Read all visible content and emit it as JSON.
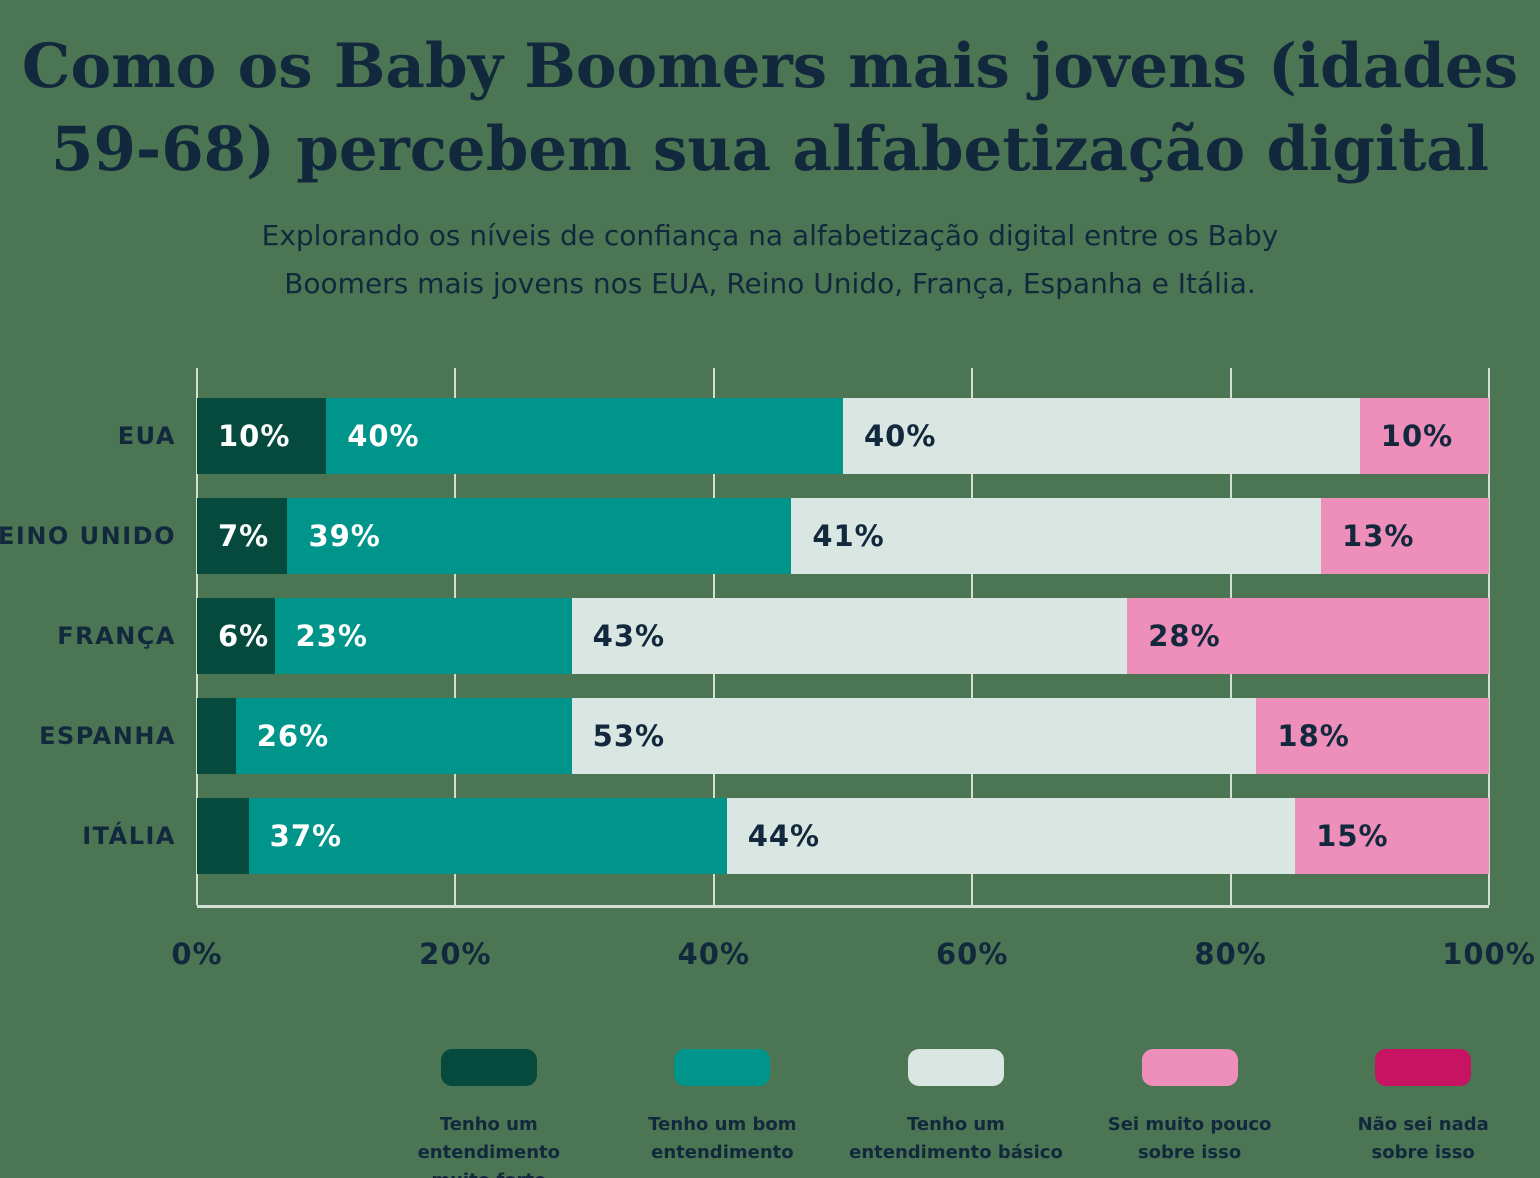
{
  "header": {
    "title": "Como os Baby Boomers mais jovens (idades\n59-68) percebem sua alfabetização digital",
    "subtitle": "Explorando os níveis de confiança na alfabetização digital entre os Baby\nBoomers mais jovens nos EUA, Reino Unido, França, Espanha e Itália."
  },
  "chart_data": {
    "type": "bar",
    "orientation": "horizontal",
    "stacked": true,
    "title": "Como os Baby Boomers mais jovens (idades 59-68) percebem sua alfabetização digital",
    "categories": [
      "EUA",
      "REINO UNIDO",
      "FRANÇA",
      "ESPANHA",
      "ITÁLIA"
    ],
    "series": [
      {
        "name": "Tenho um entendimento muito forte",
        "color": "#064A3E",
        "label_color": "#FFFFFF",
        "values": [
          10,
          7,
          6,
          3,
          4
        ]
      },
      {
        "name": "Tenho um bom entendimento",
        "color": "#00958A",
        "label_color": "#FFFFFF",
        "values": [
          40,
          39,
          23,
          26,
          37
        ]
      },
      {
        "name": "Tenho um entendimento básico",
        "color": "#DAE6E2",
        "label_color": "#12293D",
        "values": [
          40,
          41,
          43,
          53,
          44
        ]
      },
      {
        "name": "Sei muito pouco sobre isso",
        "color": "#EE8FBB",
        "label_color": "#12293D",
        "values": [
          10,
          13,
          28,
          18,
          15
        ]
      },
      {
        "name": "Não sei nada sobre isso",
        "color": "#C81363",
        "label_color": "#FFFFFF",
        "values": [
          0,
          0,
          0,
          0,
          0
        ]
      }
    ],
    "x_ticks": [
      "0%",
      "20%",
      "40%",
      "60%",
      "80%",
      "100%"
    ],
    "xlim": [
      0,
      100
    ],
    "grid": true,
    "legend_position": "bottom",
    "label_format": "{v}%",
    "min_label_value": 6
  },
  "legend": {
    "items": [
      {
        "label": "Tenho um entendimento\nmuito forte",
        "color": "#064A3E"
      },
      {
        "label": "Tenho um bom\nentendimento",
        "color": "#00958A"
      },
      {
        "label": "Tenho um\nentendimento básico",
        "color": "#DAE6E2"
      },
      {
        "label": "Sei muito pouco\nsobre isso",
        "color": "#EE8FBB"
      },
      {
        "label": "Não sei nada\nsobre isso",
        "color": "#C81363"
      }
    ]
  },
  "colors": {
    "background": "#4C7554",
    "text": "#12293D",
    "gridline": "#D3DFD6"
  }
}
